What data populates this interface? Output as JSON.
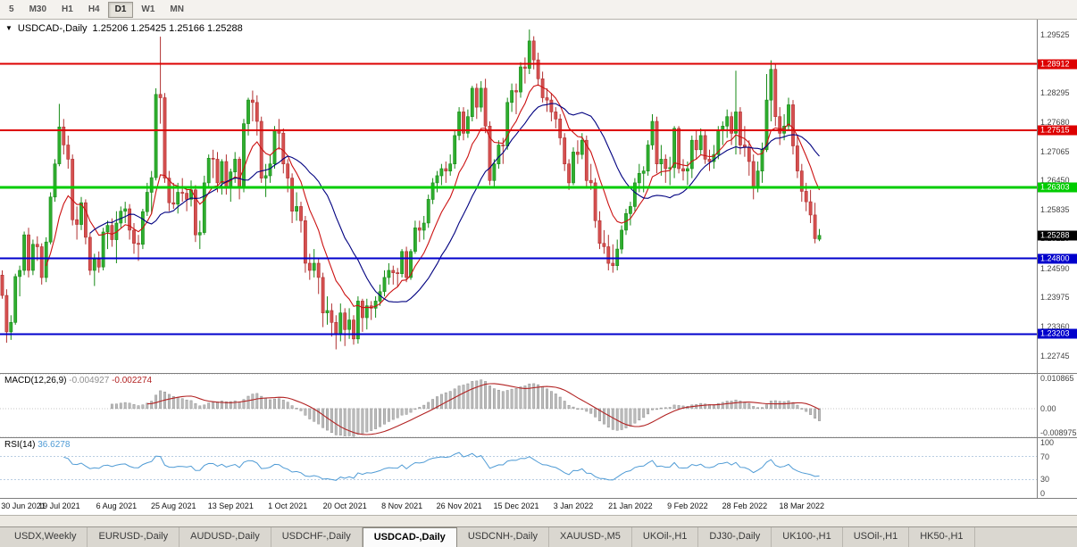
{
  "toolbar": {
    "timeframes": [
      "5",
      "M30",
      "H1",
      "H4",
      "D1",
      "W1",
      "MN"
    ],
    "active": "D1"
  },
  "chart": {
    "title": "USDCAD-,Daily",
    "ohlc": "1.25206 1.25425 1.25166 1.25288"
  },
  "macd": {
    "label": "MACD(12,26,9)",
    "value_main": "-0.004927",
    "value_signal": "-0.002274",
    "ticks": [
      "0.010865",
      "0.00",
      "-0.008975"
    ],
    "ylim": [
      -0.008975,
      0.010865
    ],
    "params": {
      "fast": 12,
      "slow": 26,
      "signal": 9
    }
  },
  "rsi": {
    "label": "RSI(14)",
    "value": "36.6278",
    "ticks": [
      "100",
      "70",
      "30",
      "0"
    ],
    "levels": [
      70,
      30
    ],
    "period": 14
  },
  "tabs": {
    "items": [
      "USDX,Weekly",
      "EURUSD-,Daily",
      "AUDUSD-,Daily",
      "USDCHF-,Daily",
      "USDCAD-,Daily",
      "USDCNH-,Daily",
      "XAUUSD-,M5",
      "UKOil-,H1",
      "DJ30-,Daily",
      "UK100-,H1",
      "USOil-,H1",
      "HK50-,H1"
    ],
    "active_index": 4
  },
  "chart_data": {
    "type": "candlestick",
    "symbol": "USDCAD-",
    "timeframe": "Daily",
    "ylim": [
      1.2238,
      1.2985
    ],
    "y_ticks": [
      "1.29525",
      "1.28295",
      "1.27680",
      "1.27065",
      "1.26450",
      "1.25835",
      "1.25220",
      "1.24590",
      "1.23975",
      "1.23360",
      "1.22745"
    ],
    "x_labels": [
      "30 Jun 2021",
      "19 Jul 2021",
      "6 Aug 2021",
      "25 Aug 2021",
      "13 Sep 2021",
      "1 Oct 2021",
      "20 Oct 2021",
      "8 Nov 2021",
      "26 Nov 2021",
      "15 Dec 2021",
      "3 Jan 2022",
      "21 Jan 2022",
      "9 Feb 2022",
      "28 Feb 2022",
      "18 Mar 2022"
    ],
    "x_label_step": 13,
    "right_margin_bars": 49,
    "hlines": [
      {
        "price": 1.28912,
        "label": "1.28912",
        "color": "#dd0000",
        "width": 2
      },
      {
        "price": 1.27515,
        "label": "1.27515",
        "color": "#dd0000",
        "width": 2
      },
      {
        "price": 1.26303,
        "label": "1.26303",
        "color": "#00cc00",
        "width": 3
      },
      {
        "price": 1.248,
        "label": "1.24800",
        "color": "#0000cc",
        "width": 2
      },
      {
        "price": 1.23203,
        "label": "1.23203",
        "color": "#0000cc",
        "width": 2
      }
    ],
    "current_price": {
      "value": 1.25288,
      "label": "1.25288",
      "color": "#000000"
    },
    "overlays": [
      {
        "type": "ema",
        "period": 10,
        "color": "#cc1111"
      },
      {
        "type": "sma",
        "period": 20,
        "color": "#000080"
      }
    ],
    "colors": {
      "up": "#178a17",
      "down": "#b03030",
      "up_fill": "#2fae2f",
      "down_fill": "#d65050",
      "macd_hist": "#bcbcbc",
      "macd_signal": "#b22222",
      "rsi_line": "#4f9bd5"
    },
    "candles": [
      [
        1.2445,
        1.2455,
        1.2395,
        1.2402
      ],
      [
        1.2402,
        1.2415,
        1.2302,
        1.2325
      ],
      [
        1.2325,
        1.236,
        1.2308,
        1.2345
      ],
      [
        1.2345,
        1.2448,
        1.234,
        1.2442
      ],
      [
        1.2442,
        1.2465,
        1.24,
        1.2455
      ],
      [
        1.2455,
        1.2537,
        1.2445,
        1.253
      ],
      [
        1.253,
        1.2545,
        1.244,
        1.2455
      ],
      [
        1.2455,
        1.252,
        1.2445,
        1.251
      ],
      [
        1.251,
        1.2527,
        1.2475,
        1.2505
      ],
      [
        1.2505,
        1.2512,
        1.2425,
        1.244
      ],
      [
        1.244,
        1.2525,
        1.243,
        1.2515
      ],
      [
        1.2515,
        1.262,
        1.251,
        1.261
      ],
      [
        1.261,
        1.269,
        1.26,
        1.268
      ],
      [
        1.268,
        1.2807,
        1.2675,
        1.2758
      ],
      [
        1.2758,
        1.2775,
        1.27,
        1.272
      ],
      [
        1.272,
        1.274,
        1.267,
        1.269
      ],
      [
        1.269,
        1.27,
        1.255,
        1.2562
      ],
      [
        1.2562,
        1.259,
        1.252,
        1.2552
      ],
      [
        1.2552,
        1.261,
        1.254,
        1.2598
      ],
      [
        1.2598,
        1.2605,
        1.251,
        1.2525
      ],
      [
        1.2525,
        1.2535,
        1.2445,
        1.2455
      ],
      [
        1.2455,
        1.249,
        1.2422,
        1.2478
      ],
      [
        1.2478,
        1.2495,
        1.245,
        1.2462
      ],
      [
        1.2462,
        1.2545,
        1.2455,
        1.2536
      ],
      [
        1.2536,
        1.256,
        1.25,
        1.255
      ],
      [
        1.255,
        1.2565,
        1.2505,
        1.252
      ],
      [
        1.252,
        1.258,
        1.247,
        1.2555
      ],
      [
        1.2555,
        1.259,
        1.2545,
        1.258
      ],
      [
        1.258,
        1.26,
        1.2555,
        1.2585
      ],
      [
        1.2585,
        1.2595,
        1.252,
        1.254
      ],
      [
        1.254,
        1.2555,
        1.249,
        1.2512
      ],
      [
        1.2512,
        1.253,
        1.2475,
        1.251
      ],
      [
        1.251,
        1.2585,
        1.25,
        1.2579
      ],
      [
        1.2579,
        1.264,
        1.257,
        1.262
      ],
      [
        1.262,
        1.2665,
        1.2575,
        1.2651
      ],
      [
        1.2651,
        1.284,
        1.2645,
        1.2827
      ],
      [
        1.2827,
        1.2949,
        1.2765,
        1.282
      ],
      [
        1.282,
        1.283,
        1.264,
        1.265
      ],
      [
        1.265,
        1.2665,
        1.258,
        1.2598
      ],
      [
        1.2598,
        1.264,
        1.2585,
        1.2595
      ],
      [
        1.2595,
        1.264,
        1.2575,
        1.262
      ],
      [
        1.262,
        1.265,
        1.26,
        1.2618
      ],
      [
        1.2618,
        1.2625,
        1.258,
        1.2605
      ],
      [
        1.2605,
        1.2645,
        1.259,
        1.2625
      ],
      [
        1.2625,
        1.2635,
        1.2515,
        1.253
      ],
      [
        1.253,
        1.256,
        1.25,
        1.2535
      ],
      [
        1.2535,
        1.2655,
        1.253,
        1.264
      ],
      [
        1.264,
        1.27,
        1.263,
        1.2692
      ],
      [
        1.2692,
        1.271,
        1.265,
        1.269
      ],
      [
        1.269,
        1.2705,
        1.262,
        1.264
      ],
      [
        1.264,
        1.269,
        1.2615,
        1.2685
      ],
      [
        1.2685,
        1.27,
        1.2615,
        1.263
      ],
      [
        1.263,
        1.267,
        1.26,
        1.2663
      ],
      [
        1.2663,
        1.2705,
        1.264,
        1.269
      ],
      [
        1.269,
        1.2695,
        1.2605,
        1.263
      ],
      [
        1.263,
        1.2775,
        1.262,
        1.2765
      ],
      [
        1.2765,
        1.282,
        1.274,
        1.2815
      ],
      [
        1.2815,
        1.2835,
        1.277,
        1.281
      ],
      [
        1.281,
        1.2825,
        1.274,
        1.277
      ],
      [
        1.277,
        1.278,
        1.264,
        1.265
      ],
      [
        1.265,
        1.268,
        1.261,
        1.2655
      ],
      [
        1.2655,
        1.27,
        1.264,
        1.268
      ],
      [
        1.268,
        1.276,
        1.267,
        1.275
      ],
      [
        1.275,
        1.2775,
        1.271,
        1.2745
      ],
      [
        1.2745,
        1.2755,
        1.266,
        1.268
      ],
      [
        1.268,
        1.269,
        1.262,
        1.265
      ],
      [
        1.265,
        1.266,
        1.2555,
        1.258
      ],
      [
        1.258,
        1.262,
        1.256,
        1.259
      ],
      [
        1.259,
        1.26,
        1.2535,
        1.256
      ],
      [
        1.256,
        1.257,
        1.245,
        1.247
      ],
      [
        1.247,
        1.249,
        1.2435,
        1.2455
      ],
      [
        1.2455,
        1.25,
        1.244,
        1.247
      ],
      [
        1.247,
        1.248,
        1.2405,
        1.244
      ],
      [
        1.244,
        1.245,
        1.2335,
        1.2365
      ],
      [
        1.2365,
        1.24,
        1.234,
        1.237
      ],
      [
        1.237,
        1.2385,
        1.2315,
        1.2345
      ],
      [
        1.2345,
        1.236,
        1.2288,
        1.232
      ],
      [
        1.232,
        1.2385,
        1.2305,
        1.2365
      ],
      [
        1.2365,
        1.2375,
        1.2295,
        1.233
      ],
      [
        1.233,
        1.2375,
        1.231,
        1.235
      ],
      [
        1.235,
        1.236,
        1.2298,
        1.231
      ],
      [
        1.231,
        1.24,
        1.23,
        1.239
      ],
      [
        1.239,
        1.2395,
        1.2325,
        1.2355
      ],
      [
        1.2355,
        1.2395,
        1.233,
        1.238
      ],
      [
        1.238,
        1.239,
        1.235,
        1.2375
      ],
      [
        1.2375,
        1.24,
        1.2355,
        1.239
      ],
      [
        1.239,
        1.2425,
        1.238,
        1.241
      ],
      [
        1.241,
        1.2455,
        1.24,
        1.244
      ],
      [
        1.244,
        1.247,
        1.2425,
        1.2455
      ],
      [
        1.2455,
        1.2465,
        1.2425,
        1.245
      ],
      [
        1.245,
        1.246,
        1.242,
        1.2448
      ],
      [
        1.2448,
        1.25,
        1.244,
        1.2495
      ],
      [
        1.2495,
        1.2505,
        1.243,
        1.244
      ],
      [
        1.244,
        1.25,
        1.2435,
        1.2495
      ],
      [
        1.2495,
        1.256,
        1.249,
        1.2545
      ],
      [
        1.2545,
        1.256,
        1.2515,
        1.254
      ],
      [
        1.254,
        1.257,
        1.252,
        1.2555
      ],
      [
        1.2555,
        1.2615,
        1.2545,
        1.2605
      ],
      [
        1.2605,
        1.265,
        1.2595,
        1.264
      ],
      [
        1.264,
        1.2665,
        1.262,
        1.2655
      ],
      [
        1.2655,
        1.268,
        1.2635,
        1.267
      ],
      [
        1.267,
        1.2685,
        1.264,
        1.2665
      ],
      [
        1.2665,
        1.27,
        1.2655,
        1.268
      ],
      [
        1.268,
        1.275,
        1.267,
        1.274
      ],
      [
        1.274,
        1.28,
        1.273,
        1.279
      ],
      [
        1.279,
        1.28,
        1.273,
        1.2745
      ],
      [
        1.2745,
        1.2795,
        1.2735,
        1.278
      ],
      [
        1.278,
        1.2845,
        1.277,
        1.284
      ],
      [
        1.284,
        1.285,
        1.2775,
        1.28
      ],
      [
        1.28,
        1.2855,
        1.279,
        1.284
      ],
      [
        1.284,
        1.286,
        1.2745,
        1.276
      ],
      [
        1.276,
        1.277,
        1.2635,
        1.2645
      ],
      [
        1.2645,
        1.269,
        1.263,
        1.268
      ],
      [
        1.268,
        1.273,
        1.267,
        1.272
      ],
      [
        1.272,
        1.2735,
        1.268,
        1.2718
      ],
      [
        1.2718,
        1.282,
        1.271,
        1.281
      ],
      [
        1.281,
        1.285,
        1.279,
        1.2835
      ],
      [
        1.2835,
        1.285,
        1.2785,
        1.2832
      ],
      [
        1.2832,
        1.2895,
        1.282,
        1.2885
      ],
      [
        1.2885,
        1.2905,
        1.285,
        1.2882
      ],
      [
        1.2882,
        1.2964,
        1.287,
        1.294
      ],
      [
        1.294,
        1.295,
        1.288,
        1.29
      ],
      [
        1.29,
        1.2915,
        1.2845,
        1.286
      ],
      [
        1.286,
        1.2875,
        1.281,
        1.282
      ],
      [
        1.282,
        1.284,
        1.279,
        1.2815
      ],
      [
        1.2815,
        1.283,
        1.277,
        1.279
      ],
      [
        1.279,
        1.28,
        1.2755,
        1.2775
      ],
      [
        1.2775,
        1.2785,
        1.272,
        1.2735
      ],
      [
        1.2735,
        1.2745,
        1.2665,
        1.268
      ],
      [
        1.268,
        1.269,
        1.2625,
        1.264
      ],
      [
        1.264,
        1.2715,
        1.2635,
        1.2705
      ],
      [
        1.2705,
        1.273,
        1.268,
        1.27
      ],
      [
        1.27,
        1.2745,
        1.269,
        1.273
      ],
      [
        1.273,
        1.274,
        1.263,
        1.2645
      ],
      [
        1.2645,
        1.268,
        1.2625,
        1.264
      ],
      [
        1.264,
        1.265,
        1.2545,
        1.256
      ],
      [
        1.256,
        1.258,
        1.25,
        1.2512
      ],
      [
        1.2512,
        1.254,
        1.249,
        1.2505
      ],
      [
        1.2505,
        1.253,
        1.2455,
        1.247
      ],
      [
        1.247,
        1.251,
        1.245,
        1.2465
      ],
      [
        1.2465,
        1.252,
        1.2455,
        1.25
      ],
      [
        1.25,
        1.255,
        1.249,
        1.254
      ],
      [
        1.254,
        1.2585,
        1.253,
        1.2575
      ],
      [
        1.2575,
        1.26,
        1.255,
        1.259
      ],
      [
        1.259,
        1.265,
        1.258,
        1.264
      ],
      [
        1.264,
        1.268,
        1.262,
        1.266
      ],
      [
        1.266,
        1.2675,
        1.262,
        1.2665
      ],
      [
        1.2665,
        1.273,
        1.2655,
        1.272
      ],
      [
        1.272,
        1.2785,
        1.271,
        1.277
      ],
      [
        1.277,
        1.278,
        1.266,
        1.268
      ],
      [
        1.268,
        1.272,
        1.2655,
        1.269
      ],
      [
        1.269,
        1.27,
        1.264,
        1.267
      ],
      [
        1.267,
        1.2695,
        1.2635,
        1.2672
      ],
      [
        1.2672,
        1.276,
        1.265,
        1.2755
      ],
      [
        1.2755,
        1.276,
        1.266,
        1.267
      ],
      [
        1.267,
        1.269,
        1.2645,
        1.2665
      ],
      [
        1.2665,
        1.2685,
        1.2635,
        1.267
      ],
      [
        1.267,
        1.274,
        1.265,
        1.273
      ],
      [
        1.273,
        1.275,
        1.269,
        1.271
      ],
      [
        1.271,
        1.2755,
        1.27,
        1.274
      ],
      [
        1.274,
        1.275,
        1.268,
        1.269
      ],
      [
        1.269,
        1.271,
        1.2665,
        1.2685
      ],
      [
        1.2685,
        1.272,
        1.267,
        1.27
      ],
      [
        1.27,
        1.276,
        1.269,
        1.275
      ],
      [
        1.275,
        1.277,
        1.272,
        1.276
      ],
      [
        1.276,
        1.2795,
        1.2735,
        1.278
      ],
      [
        1.278,
        1.279,
        1.272,
        1.2745
      ],
      [
        1.2745,
        1.2877,
        1.27,
        1.279
      ],
      [
        1.279,
        1.28,
        1.27,
        1.272
      ],
      [
        1.272,
        1.276,
        1.2695,
        1.2715
      ],
      [
        1.2715,
        1.273,
        1.2655,
        1.2685
      ],
      [
        1.2685,
        1.27,
        1.2605,
        1.263
      ],
      [
        1.263,
        1.2685,
        1.262,
        1.2665
      ],
      [
        1.2665,
        1.2725,
        1.264,
        1.271
      ],
      [
        1.271,
        1.287,
        1.2705,
        1.2815
      ],
      [
        1.2815,
        1.2899,
        1.277,
        1.288
      ],
      [
        1.288,
        1.289,
        1.276,
        1.278
      ],
      [
        1.278,
        1.28,
        1.272,
        1.2745
      ],
      [
        1.2745,
        1.2785,
        1.273,
        1.276
      ],
      [
        1.276,
        1.282,
        1.275,
        1.2805
      ],
      [
        1.2805,
        1.2815,
        1.27,
        1.2718
      ],
      [
        1.2718,
        1.274,
        1.265,
        1.2665
      ],
      [
        1.2665,
        1.268,
        1.26,
        1.2622
      ],
      [
        1.2622,
        1.264,
        1.258,
        1.26
      ],
      [
        1.26,
        1.2625,
        1.2555,
        1.2572
      ],
      [
        1.2572,
        1.2598,
        1.2512,
        1.2522
      ],
      [
        1.25206,
        1.25425,
        1.25166,
        1.25288
      ]
    ]
  }
}
